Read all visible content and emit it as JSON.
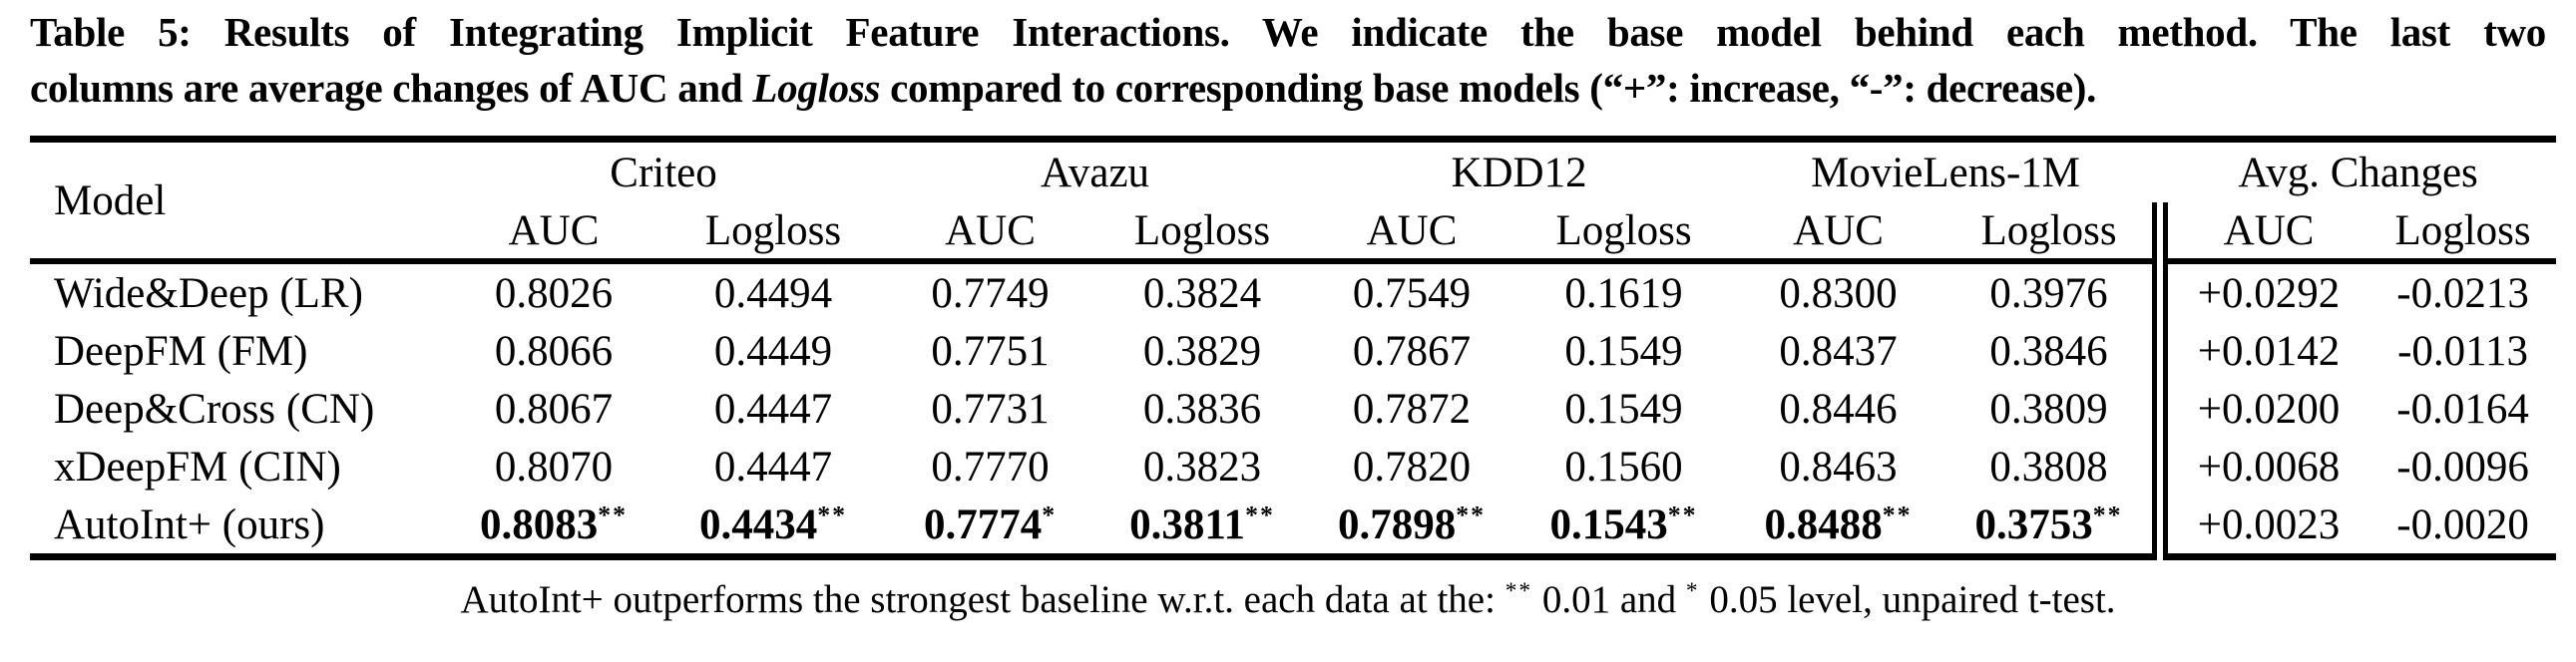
{
  "caption": {
    "line1": "Table 5: Results of Integrating Implicit Feature Interactions. We indicate the base model behind each method. The last two",
    "line2": {
      "pre": "columns are average changes of AUC and ",
      "italic": "Logloss",
      "post": " compared to corresponding base models (“+”: increase, “-”: decrease)."
    }
  },
  "table": {
    "model_header": "Model",
    "groups": [
      {
        "label": "Criteo",
        "metrics": [
          "AUC",
          "Logloss"
        ]
      },
      {
        "label": "Avazu",
        "metrics": [
          "AUC",
          "Logloss"
        ]
      },
      {
        "label": "KDD12",
        "metrics": [
          "AUC",
          "Logloss"
        ]
      },
      {
        "label": "MovieLens-1M",
        "metrics": [
          "AUC",
          "Logloss"
        ]
      },
      {
        "label": "Avg. Changes",
        "metrics": [
          "AUC",
          "Logloss"
        ]
      }
    ],
    "rows": [
      {
        "model": "Wide&Deep (LR)",
        "cells": [
          {
            "text": "0.8026"
          },
          {
            "text": "0.4494"
          },
          {
            "text": "0.7749"
          },
          {
            "text": "0.3824"
          },
          {
            "text": "0.7549"
          },
          {
            "text": "0.1619"
          },
          {
            "text": "0.8300"
          },
          {
            "text": "0.3976"
          },
          {
            "text": "+0.0292"
          },
          {
            "text": "-0.0213"
          }
        ]
      },
      {
        "model": "DeepFM (FM)",
        "cells": [
          {
            "text": "0.8066"
          },
          {
            "text": "0.4449"
          },
          {
            "text": "0.7751"
          },
          {
            "text": "0.3829"
          },
          {
            "text": "0.7867"
          },
          {
            "text": "0.1549"
          },
          {
            "text": "0.8437"
          },
          {
            "text": "0.3846"
          },
          {
            "text": "+0.0142"
          },
          {
            "text": "-0.0113"
          }
        ]
      },
      {
        "model": "Deep&Cross (CN)",
        "cells": [
          {
            "text": "0.8067"
          },
          {
            "text": "0.4447"
          },
          {
            "text": "0.7731"
          },
          {
            "text": "0.3836"
          },
          {
            "text": "0.7872"
          },
          {
            "text": "0.1549"
          },
          {
            "text": "0.8446"
          },
          {
            "text": "0.3809"
          },
          {
            "text": "+0.0200"
          },
          {
            "text": "-0.0164"
          }
        ]
      },
      {
        "model": "xDeepFM (CIN)",
        "cells": [
          {
            "text": "0.8070"
          },
          {
            "text": "0.4447"
          },
          {
            "text": "0.7770"
          },
          {
            "text": "0.3823"
          },
          {
            "text": "0.7820"
          },
          {
            "text": "0.1560"
          },
          {
            "text": "0.8463"
          },
          {
            "text": "0.3808"
          },
          {
            "text": "+0.0068"
          },
          {
            "text": "-0.0096"
          }
        ]
      },
      {
        "model": "AutoInt+ (ours)",
        "cells": [
          {
            "text": "0.8083",
            "sup": "**",
            "bold": true
          },
          {
            "text": "0.4434",
            "sup": "**",
            "bold": true
          },
          {
            "text": "0.7774",
            "sup": "*",
            "bold": true
          },
          {
            "text": "0.3811",
            "sup": "**",
            "bold": true
          },
          {
            "text": "0.7898",
            "sup": "**",
            "bold": true
          },
          {
            "text": "0.1543",
            "sup": "**",
            "bold": true
          },
          {
            "text": "0.8488",
            "sup": "**",
            "bold": true
          },
          {
            "text": "0.3753",
            "sup": "**",
            "bold": true
          },
          {
            "text": "+0.0023"
          },
          {
            "text": "-0.0020"
          }
        ]
      }
    ]
  },
  "footnote": {
    "pre": "AutoInt+ outperforms the strongest baseline w.r.t. each data at the: ",
    "sup1": "**",
    "mid": " 0.01 and ",
    "sup2": "*",
    "post": " 0.05 level, unpaired t-test."
  },
  "colors": {
    "text": "#000000",
    "background": "#ffffff",
    "rule": "#000000"
  }
}
